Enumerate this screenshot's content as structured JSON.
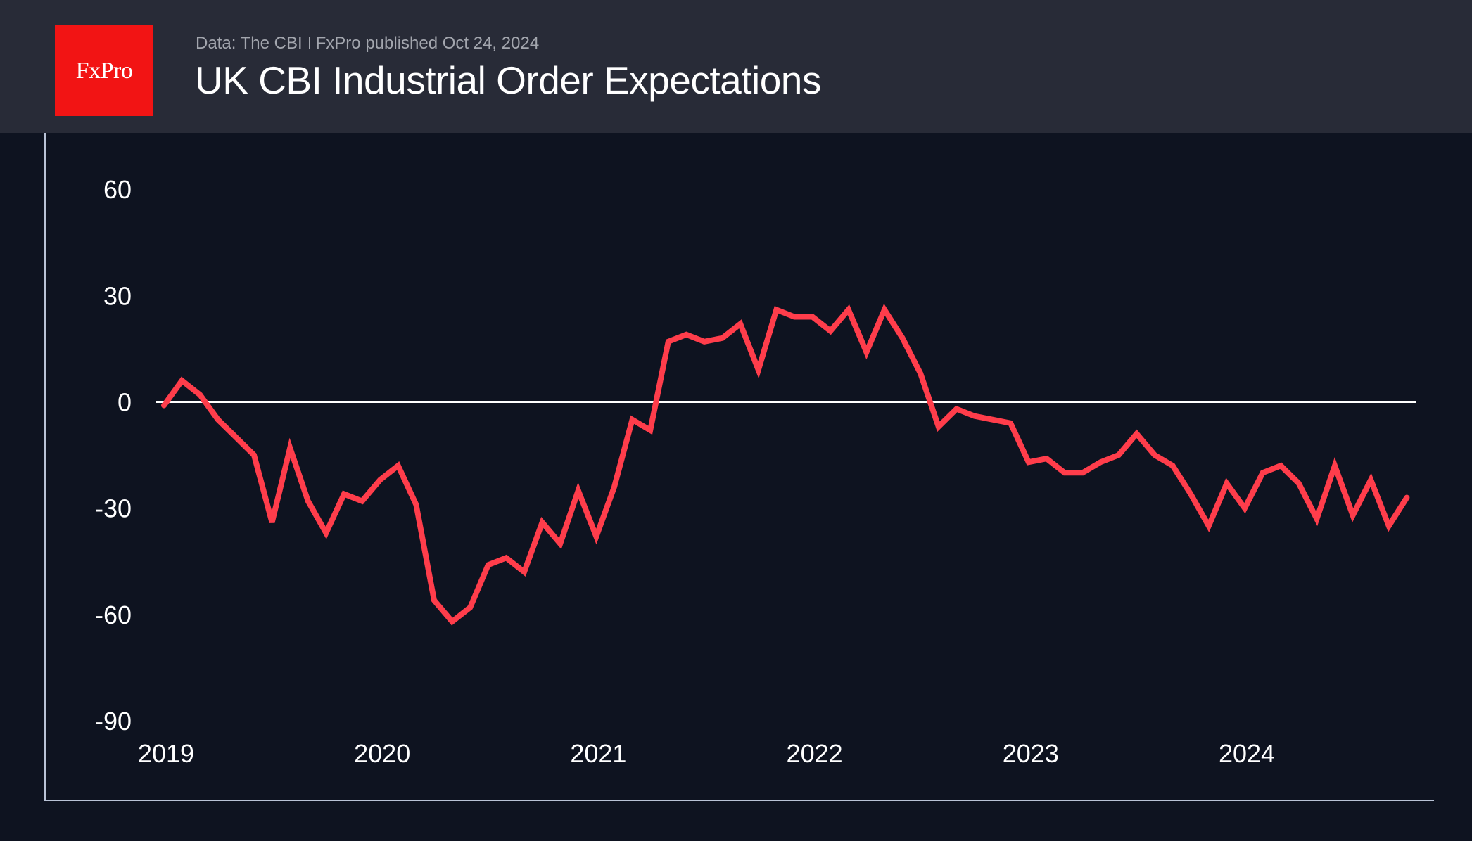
{
  "header": {
    "logo_text": "FxPro",
    "source": "Data: The CBI",
    "publisher": "FxPro published Oct 24, 2024",
    "title": "UK CBI Industrial Order Expectations"
  },
  "colors": {
    "background": "#0e1320",
    "header_background": "#282b37",
    "logo": "#f21414",
    "series": "#ff3d4b",
    "zero_line": "#ffffff",
    "frame": "#b9c3d6"
  },
  "chart_data": {
    "type": "line",
    "title": "UK CBI Industrial Order Expectations",
    "xlabel": "",
    "ylabel": "",
    "ylim": [
      -90,
      70
    ],
    "yticks": [
      60,
      30,
      0,
      -30,
      -60,
      -90
    ],
    "ytick_labels": [
      "60",
      "30",
      "0",
      "-30",
      "-60",
      "-90"
    ],
    "xticks": [
      "2019",
      "2020",
      "2021",
      "2022",
      "2023",
      "2024"
    ],
    "x_start": "2019-01",
    "x_frequency": "monthly",
    "grid": false,
    "reference_line": 0,
    "legend": "none",
    "series": [
      {
        "name": "UK CBI Industrial Order Expectations",
        "values": [
          -1,
          6,
          2,
          -5,
          -10,
          -15,
          -34,
          -13,
          -28,
          -37,
          -26,
          -28,
          -22,
          -18,
          -29,
          -56,
          -62,
          -58,
          -46,
          -44,
          -48,
          -34,
          -40,
          -25,
          -38,
          -24,
          -5,
          -8,
          17,
          19,
          17,
          18,
          22,
          9,
          26,
          24,
          24,
          20,
          26,
          14,
          26,
          18,
          8,
          -7,
          -2,
          -4,
          -5,
          -6,
          -17,
          -16,
          -20,
          -20,
          -17,
          -15,
          -9,
          -15,
          -18,
          -26,
          -35,
          -23,
          -30,
          -20,
          -18,
          -23,
          -33,
          -18,
          -32,
          -22,
          -35,
          -27
        ]
      }
    ]
  }
}
